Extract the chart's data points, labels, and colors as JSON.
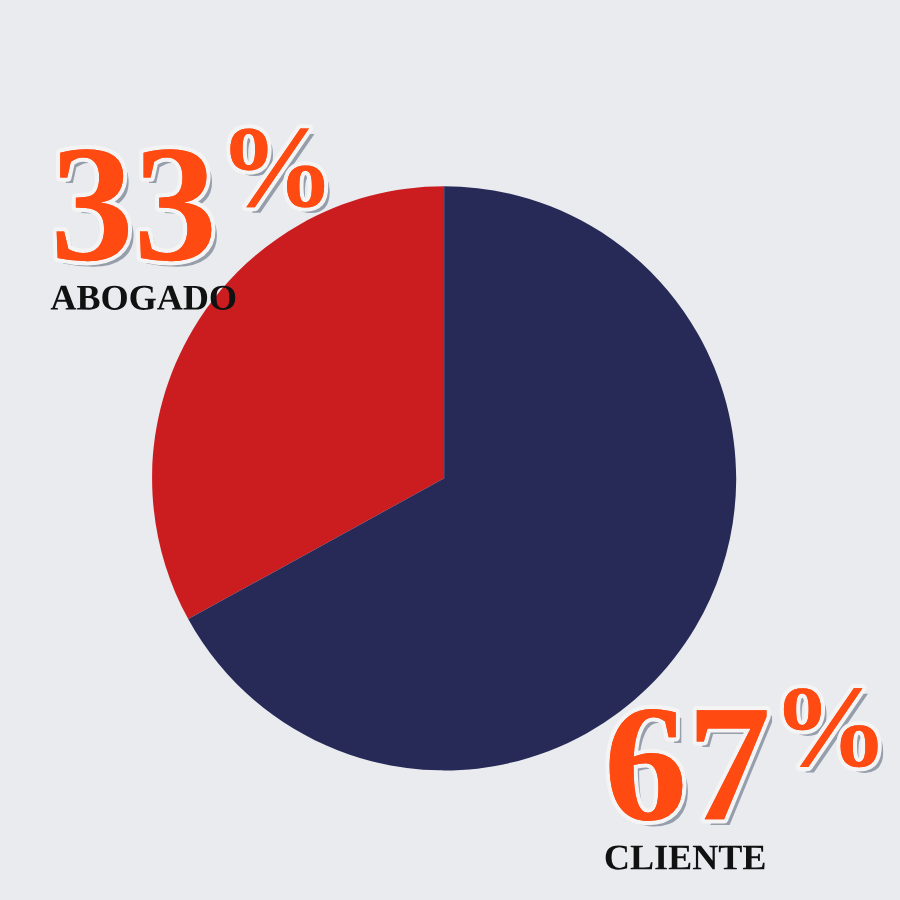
{
  "chart_data": {
    "type": "pie",
    "categories": [
      "ABOGADO",
      "CLIENTE"
    ],
    "values": [
      33,
      67
    ],
    "colors": [
      "#cb1d1f",
      "#272957"
    ],
    "value_labels": [
      "33$^{%}$",
      "67$^{%}$"
    ]
  }
}
